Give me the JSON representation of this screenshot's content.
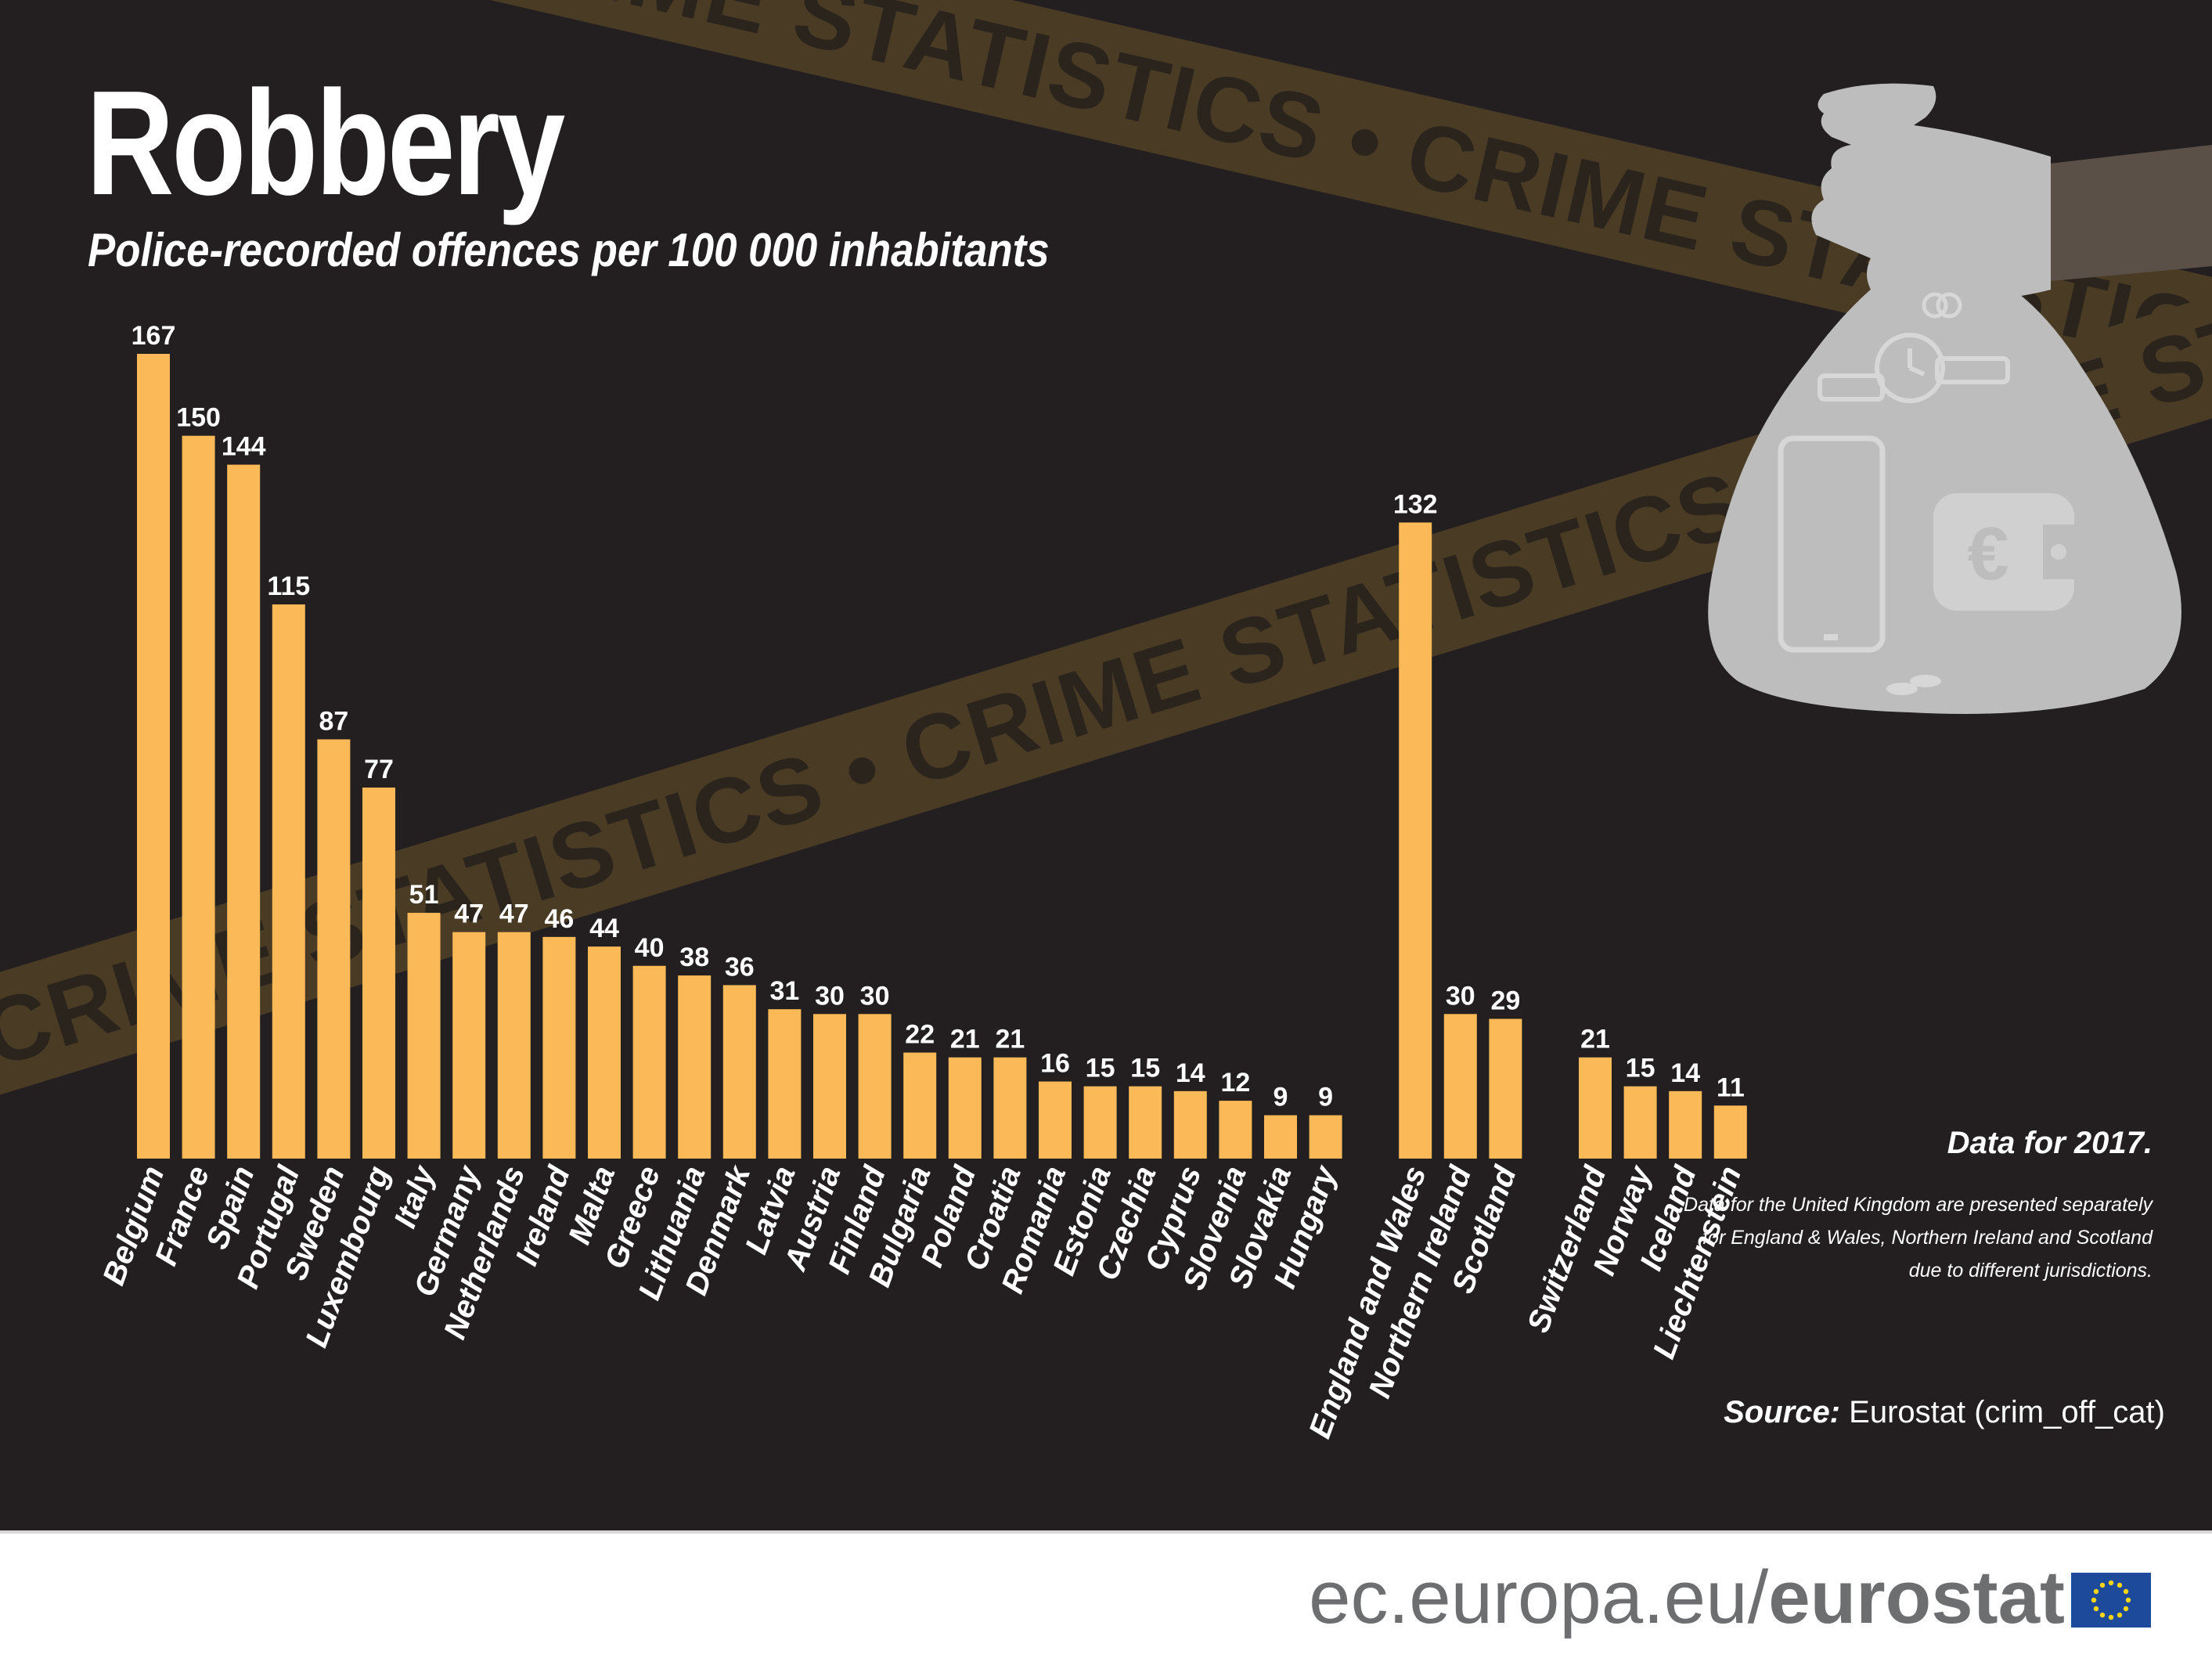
{
  "title": "Robbery",
  "subtitle": "Police-recorded offences per 100 000 inhabitants",
  "tape_text": "CRIME STATISTICS",
  "colors": {
    "background": "#231f20",
    "bar": "#fbb957",
    "tape": "#4a3b25",
    "tape_text": "#2a241d",
    "bag": "#bdbdbe",
    "footer_text": "#6d6e70",
    "eu_blue": "#1e4a9c",
    "eu_star": "#ffd617"
  },
  "bag_icons": [
    "rings-icon",
    "watch-icon",
    "smartphone-icon",
    "euro-wallet-icon",
    "coins-icon"
  ],
  "notes": {
    "year": "Data for 2017.",
    "uk": "Data for the United Kingdom are presented separately for England & Wales, Northern Ireland and Scotland due to different jurisdictions.",
    "source_label": "Source:",
    "source_text": "Eurostat (crim_off_cat)"
  },
  "footer": {
    "url_prefix": "ec.europa.eu/",
    "url_bold": "eurostat"
  },
  "chart_data": {
    "type": "bar",
    "title": "Robbery",
    "subtitle": "Police-recorded offences per 100 000 inhabitants",
    "xlabel": "",
    "ylabel": "",
    "ylim": [
      0,
      167
    ],
    "grid": false,
    "data_labels": true,
    "groups": [
      {
        "categories": [
          "Belgium",
          "France",
          "Spain",
          "Portugal",
          "Sweden",
          "Luxembourg",
          "Italy",
          "Germany",
          "Netherlands",
          "Ireland",
          "Malta",
          "Greece",
          "Lithuania",
          "Denmark",
          "Latvia",
          "Austria",
          "Finland",
          "Bulgaria",
          "Poland",
          "Croatia",
          "Romania",
          "Estonia",
          "Czechia",
          "Cyprus",
          "Slovenia",
          "Slovakia",
          "Hungary"
        ],
        "values": [
          167,
          150,
          144,
          115,
          87,
          77,
          51,
          47,
          47,
          46,
          44,
          40,
          38,
          36,
          31,
          30,
          30,
          22,
          21,
          21,
          16,
          15,
          15,
          14,
          12,
          9,
          9
        ]
      },
      {
        "categories": [
          "England and Wales",
          "Northern Ireland",
          "Scotland"
        ],
        "values": [
          132,
          30,
          29
        ]
      },
      {
        "categories": [
          "Switzerland",
          "Norway",
          "Iceland",
          "Liechtenstein"
        ],
        "values": [
          21,
          15,
          14,
          11
        ]
      }
    ]
  }
}
